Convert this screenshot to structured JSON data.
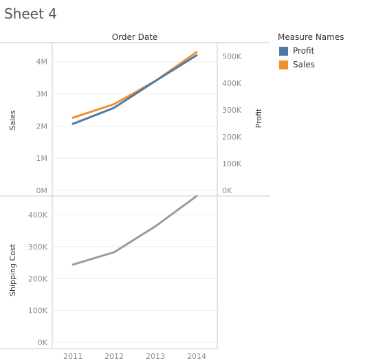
{
  "sheet": {
    "title": "Sheet 4"
  },
  "legend": {
    "title": "Measure Names",
    "items": [
      {
        "label": "Profit",
        "color": "#4e79a7"
      },
      {
        "label": "Sales",
        "color": "#f28e2b"
      }
    ]
  },
  "chart_data": [
    {
      "type": "line",
      "title": "Order Date",
      "categories": [
        "2011",
        "2012",
        "2013",
        "2014"
      ],
      "series": [
        {
          "name": "Sales",
          "axis": "left",
          "color": "#f28e2b",
          "values": [
            2260000,
            2680000,
            3400000,
            4300000
          ]
        },
        {
          "name": "Profit",
          "axis": "right",
          "color": "#4e79a7",
          "values": [
            248000,
            308000,
            408000,
            504000
          ]
        }
      ],
      "ylabel": "Sales",
      "ylim": [
        0,
        4400000
      ],
      "yticks": [
        "0M",
        "1M",
        "2M",
        "3M",
        "4M"
      ],
      "y2label": "Profit",
      "y2lim": [
        0,
        528000
      ],
      "y2ticks": [
        "0K",
        "100K",
        "200K",
        "300K",
        "400K",
        "500K"
      ],
      "grid": true
    },
    {
      "type": "line",
      "categories": [
        "2011",
        "2012",
        "2013",
        "2014"
      ],
      "series": [
        {
          "name": "Shipping Cost",
          "color": "#9b9b9b",
          "values": [
            244000,
            283000,
            364000,
            459000
          ]
        }
      ],
      "ylabel": "Shipping Cost",
      "ylim": [
        0,
        440000
      ],
      "yticks": [
        "0K",
        "100K",
        "200K",
        "300K",
        "400K"
      ],
      "grid": true
    }
  ]
}
